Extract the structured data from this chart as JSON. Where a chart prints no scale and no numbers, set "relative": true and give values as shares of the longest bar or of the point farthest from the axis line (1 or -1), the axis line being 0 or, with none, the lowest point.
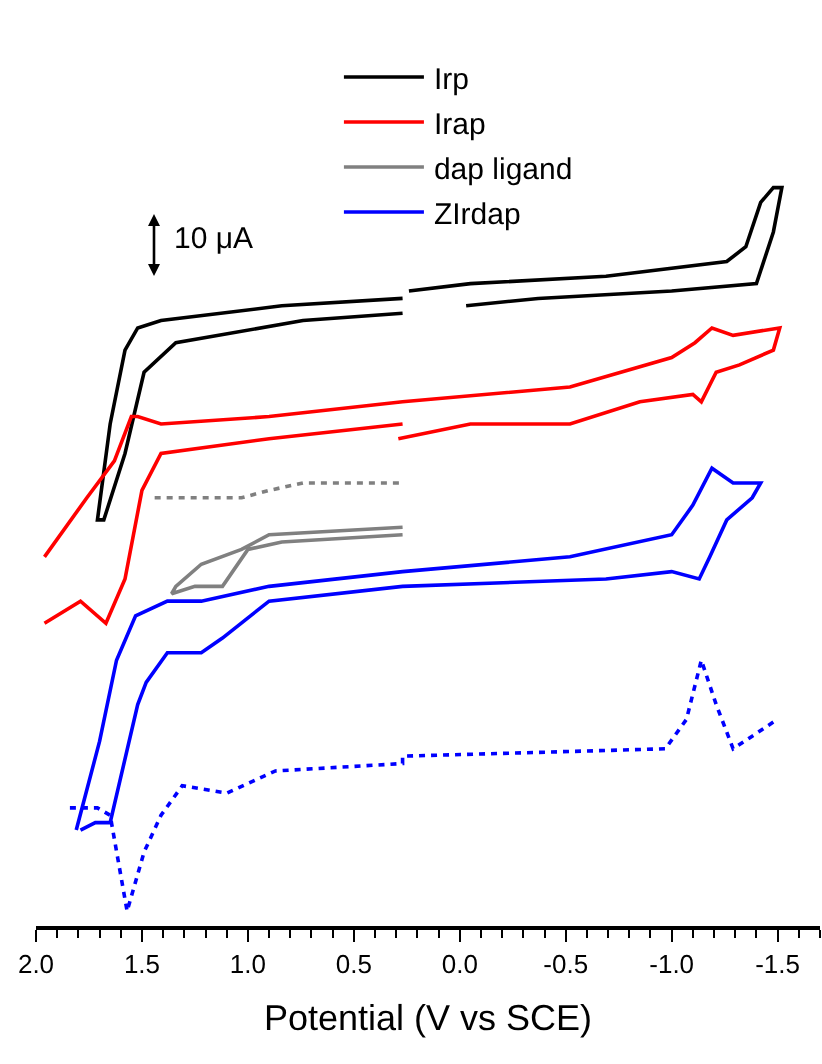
{
  "chart_data": {
    "type": "line",
    "relative": true,
    "xlabel": "Potential (V vs SCE)",
    "xlim": [
      2.0,
      -1.7
    ],
    "xticks": [
      {
        "value": 2.0,
        "label": "2.0"
      },
      {
        "value": 1.5,
        "label": "1.5"
      },
      {
        "value": 1.0,
        "label": "1.0"
      },
      {
        "value": 0.5,
        "label": "0.5"
      },
      {
        "value": 0.0,
        "label": "0.0"
      },
      {
        "value": -0.5,
        "label": "-0.5"
      },
      {
        "value": -1.0,
        "label": "-1.0"
      },
      {
        "value": -1.5,
        "label": "-1.5"
      }
    ],
    "tick_labels": "x",
    "grid": false,
    "legend": "top",
    "annotations": [
      "10 μA"
    ],
    "series": [
      {
        "name": "Irp",
        "color": "#000000",
        "line_style": "solid",
        "x": [
          0.27,
          0.74,
          1.34,
          1.49,
          1.58,
          1.68,
          1.71,
          1.65,
          1.58,
          1.52,
          1.41,
          0.84,
          0.27,
          0.25,
          0.24,
          -0.05,
          -0.69,
          -1.26,
          -1.35,
          -1.42,
          -1.48,
          -1.52,
          -1.48,
          -1.4,
          -1.0,
          -0.37,
          -0.03
        ],
        "values": [
          0.83,
          0.82,
          0.79,
          0.75,
          0.64,
          0.55,
          0.55,
          0.68,
          0.78,
          0.81,
          0.82,
          0.84,
          0.85,
          null,
          0.86,
          0.87,
          0.88,
          0.9,
          0.92,
          0.98,
          1.0,
          1.0,
          0.94,
          0.87,
          0.86,
          0.85,
          0.84
        ]
      },
      {
        "name": "Irap",
        "color": "#ff0000",
        "line_style": "solid",
        "x": [
          1.96,
          1.76,
          1.63,
          1.55,
          1.52,
          1.41,
          0.9,
          0.27,
          -0.52,
          -1.0,
          -1.11,
          -1.19,
          -1.29,
          -1.51,
          -1.48,
          -1.32,
          -1.21,
          -1.14,
          -1.1,
          -0.85,
          -0.52,
          -0.05,
          0.29,
          0.28,
          0.27,
          0.9,
          1.41,
          1.5,
          1.58,
          1.67,
          1.79,
          1.96
        ],
        "values": [
          0.5,
          0.58,
          0.63,
          0.69,
          0.69,
          0.68,
          0.69,
          0.71,
          0.73,
          0.77,
          0.79,
          0.81,
          0.8,
          0.81,
          0.78,
          0.76,
          0.75,
          0.71,
          0.72,
          0.71,
          0.68,
          0.68,
          0.66,
          null,
          0.68,
          0.66,
          0.64,
          0.59,
          0.47,
          0.41,
          0.44,
          0.41
        ]
      },
      {
        "color": "#808080",
        "line_style": "dotted",
        "x": [
          1.44,
          1.12,
          1.03,
          0.9,
          0.74,
          0.27
        ],
        "values": [
          0.58,
          0.58,
          0.58,
          0.59,
          0.6,
          0.6
        ]
      },
      {
        "name": "dap ligand",
        "color": "#808080",
        "line_style": "solid",
        "x": [
          0.27,
          0.9,
          1.03,
          1.22,
          1.34,
          1.36,
          1.25,
          1.12,
          1.0,
          0.84,
          0.27
        ],
        "values": [
          0.54,
          0.53,
          0.51,
          0.49,
          0.46,
          0.45,
          0.46,
          0.46,
          0.51,
          0.52,
          0.53
        ]
      },
      {
        "color": "#0000ff",
        "line_style": "dotted",
        "x": [
          1.84,
          1.71,
          1.65,
          1.57,
          1.49,
          1.41,
          1.31,
          1.1,
          0.87,
          0.27,
          0.27,
          -0.97,
          -1.07,
          -1.14,
          -1.21,
          -1.29,
          -1.5
        ],
        "values": [
          0.16,
          0.16,
          0.15,
          0.02,
          0.1,
          0.15,
          0.19,
          0.18,
          0.21,
          0.22,
          0.23,
          0.24,
          0.28,
          0.36,
          0.3,
          0.24,
          0.28
        ]
      },
      {
        "name": "ZIrdap",
        "color": "#0000ff",
        "line_style": "solid",
        "x": [
          1.81,
          1.7,
          1.62,
          1.53,
          1.38,
          1.22,
          0.9,
          0.27,
          -0.52,
          -1.0,
          -1.1,
          -1.19,
          -1.29,
          -1.42,
          -1.38,
          -1.26,
          -1.18,
          -1.13,
          -1.0,
          -0.69,
          0.27,
          0.9,
          1.12,
          1.22,
          1.38,
          1.48,
          1.52,
          1.65,
          1.72,
          1.79
        ],
        "values": [
          0.13,
          0.25,
          0.36,
          0.42,
          0.44,
          0.44,
          0.46,
          0.48,
          0.5,
          0.53,
          0.57,
          0.62,
          0.6,
          0.6,
          0.58,
          0.55,
          0.5,
          0.47,
          0.48,
          0.47,
          0.46,
          0.44,
          0.39,
          0.37,
          0.37,
          0.33,
          0.3,
          0.14,
          0.14,
          0.13
        ]
      }
    ]
  }
}
